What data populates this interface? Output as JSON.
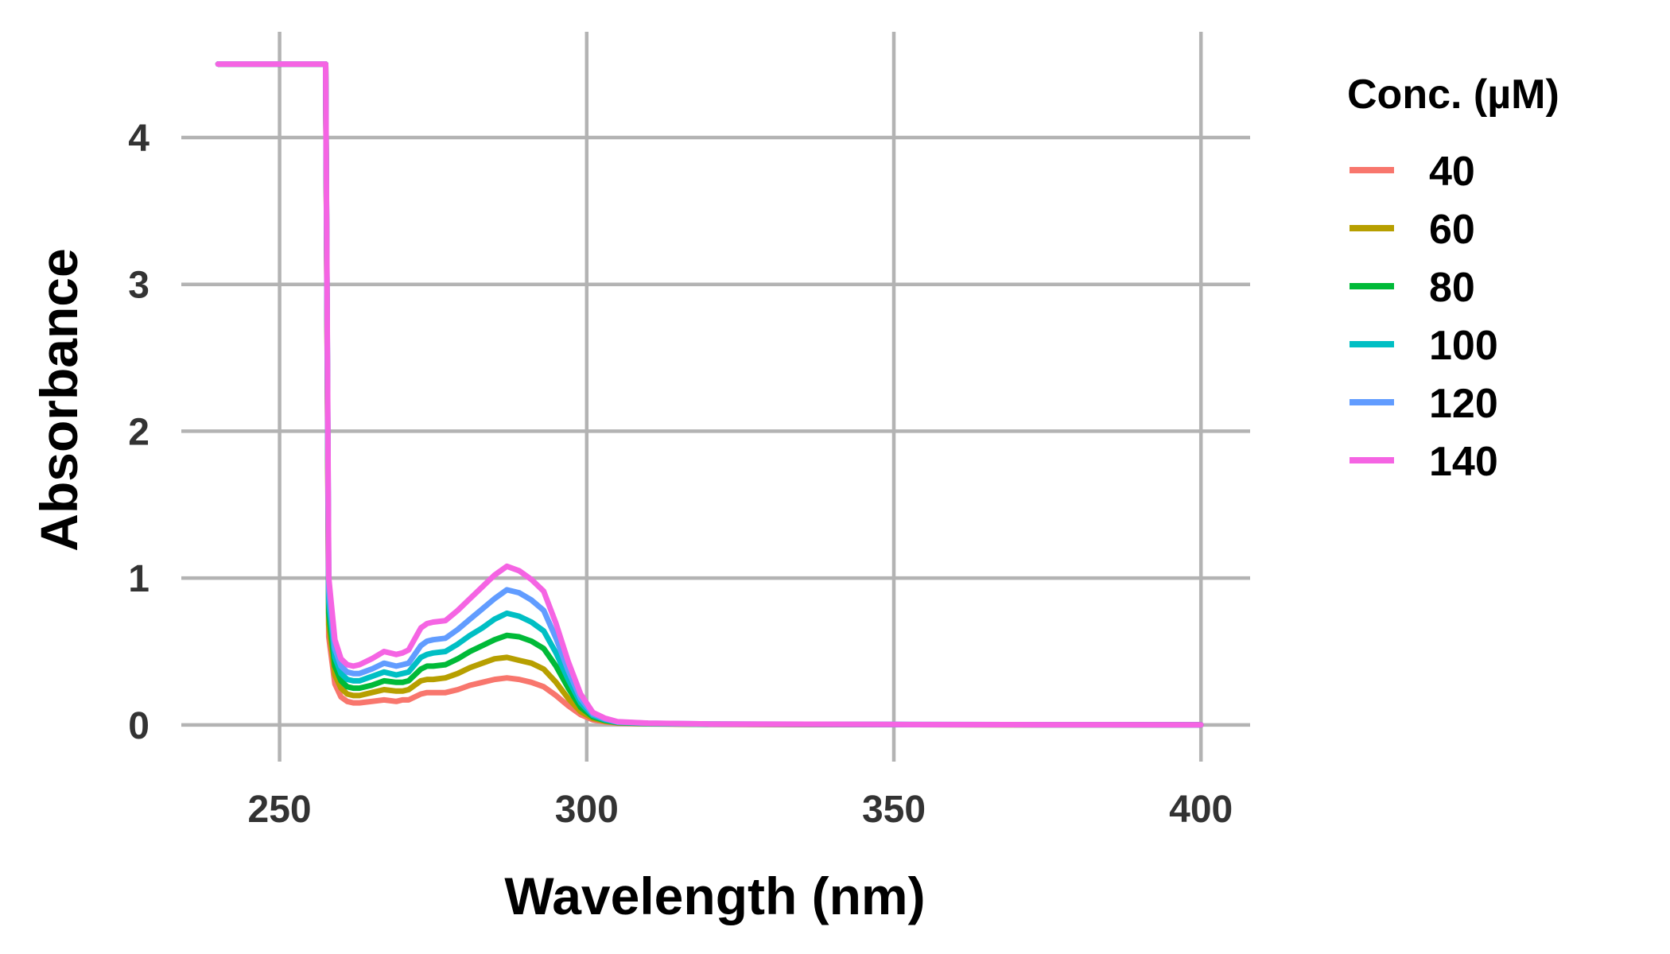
{
  "chart_data": {
    "type": "line",
    "title": "",
    "xlabel": "Wavelength (nm)",
    "ylabel": "Absorbance",
    "xlim": [
      234,
      408
    ],
    "ylim": [
      -0.25,
      4.72
    ],
    "xticks": [
      250,
      300,
      350,
      400
    ],
    "yticks": [
      0,
      1,
      2,
      3,
      4
    ],
    "grid": true,
    "legend": {
      "title": "Conc. (µM)",
      "position": "right"
    },
    "x": [
      240,
      250,
      257,
      257.5,
      258,
      259,
      260,
      261,
      262,
      263,
      265,
      267,
      269,
      270,
      271,
      273,
      274,
      275,
      277,
      279,
      281,
      283,
      285,
      287,
      289,
      291,
      293,
      295,
      297,
      299,
      301,
      303,
      305,
      310,
      320,
      350,
      375,
      400
    ],
    "series": [
      {
        "name": "40",
        "color": "#F8766D",
        "values": [
          4.5,
          4.5,
          4.5,
          4.5,
          0.6,
          0.28,
          0.19,
          0.16,
          0.15,
          0.15,
          0.16,
          0.17,
          0.16,
          0.17,
          0.17,
          0.21,
          0.22,
          0.22,
          0.22,
          0.24,
          0.27,
          0.29,
          0.31,
          0.32,
          0.31,
          0.29,
          0.26,
          0.2,
          0.13,
          0.07,
          0.035,
          0.02,
          0.012,
          0.007,
          0.004,
          0.002,
          0.001,
          0.0
        ]
      },
      {
        "name": "60",
        "color": "#B79F00",
        "values": [
          4.5,
          4.5,
          4.5,
          4.5,
          0.68,
          0.34,
          0.25,
          0.21,
          0.2,
          0.2,
          0.22,
          0.24,
          0.23,
          0.23,
          0.24,
          0.3,
          0.31,
          0.31,
          0.32,
          0.35,
          0.39,
          0.42,
          0.45,
          0.46,
          0.44,
          0.42,
          0.38,
          0.29,
          0.18,
          0.09,
          0.045,
          0.025,
          0.014,
          0.008,
          0.004,
          0.002,
          0.001,
          0.0
        ]
      },
      {
        "name": "80",
        "color": "#00BA38",
        "values": [
          4.5,
          4.5,
          4.5,
          4.5,
          0.76,
          0.4,
          0.3,
          0.26,
          0.25,
          0.25,
          0.27,
          0.3,
          0.29,
          0.29,
          0.3,
          0.38,
          0.4,
          0.4,
          0.41,
          0.45,
          0.5,
          0.54,
          0.58,
          0.61,
          0.6,
          0.57,
          0.52,
          0.4,
          0.25,
          0.12,
          0.055,
          0.03,
          0.016,
          0.009,
          0.005,
          0.002,
          0.001,
          0.0
        ]
      },
      {
        "name": "100",
        "color": "#00BFC4",
        "values": [
          4.5,
          4.5,
          4.5,
          4.5,
          0.84,
          0.46,
          0.35,
          0.31,
          0.3,
          0.3,
          0.33,
          0.36,
          0.34,
          0.35,
          0.36,
          0.46,
          0.48,
          0.49,
          0.5,
          0.55,
          0.61,
          0.66,
          0.72,
          0.76,
          0.74,
          0.7,
          0.64,
          0.49,
          0.31,
          0.15,
          0.065,
          0.035,
          0.018,
          0.01,
          0.005,
          0.003,
          0.001,
          0.0
        ]
      },
      {
        "name": "120",
        "color": "#619CFF",
        "values": [
          4.5,
          4.5,
          4.5,
          4.5,
          0.92,
          0.52,
          0.4,
          0.36,
          0.35,
          0.35,
          0.38,
          0.42,
          0.4,
          0.41,
          0.42,
          0.54,
          0.57,
          0.58,
          0.59,
          0.65,
          0.72,
          0.79,
          0.86,
          0.92,
          0.9,
          0.85,
          0.78,
          0.59,
          0.37,
          0.18,
          0.075,
          0.04,
          0.02,
          0.011,
          0.006,
          0.003,
          0.001,
          0.0
        ]
      },
      {
        "name": "140",
        "color": "#F564E3",
        "values": [
          4.5,
          4.5,
          4.5,
          4.5,
          1.0,
          0.58,
          0.45,
          0.41,
          0.4,
          0.41,
          0.45,
          0.5,
          0.48,
          0.49,
          0.51,
          0.66,
          0.69,
          0.7,
          0.71,
          0.78,
          0.86,
          0.94,
          1.02,
          1.08,
          1.05,
          0.99,
          0.91,
          0.69,
          0.43,
          0.21,
          0.085,
          0.045,
          0.022,
          0.012,
          0.006,
          0.003,
          0.001,
          0.0
        ]
      }
    ]
  }
}
